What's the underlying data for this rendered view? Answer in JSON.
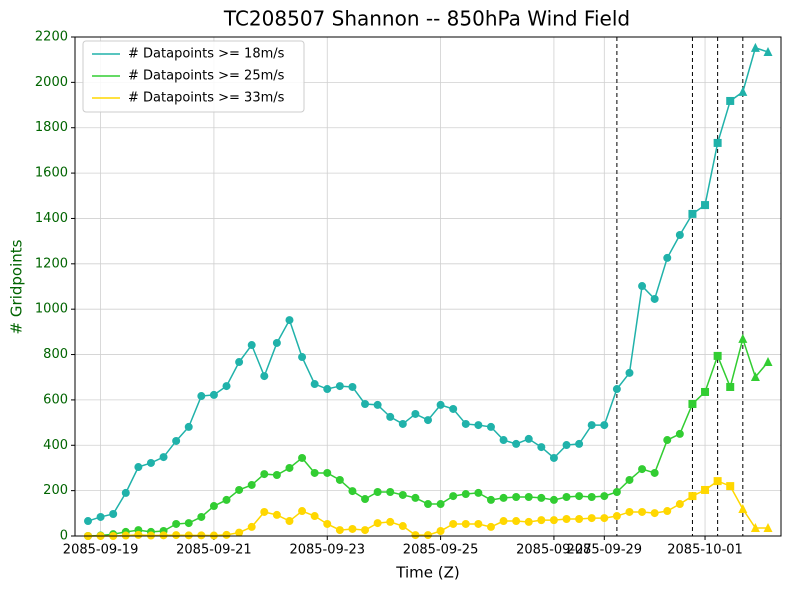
{
  "chart_data": {
    "type": "line",
    "title": "TC208507 Shannon -- 850hPa Wind Field",
    "x_label": "Time (Z)",
    "y_label": "# Gridpoints",
    "categories": [
      null,
      "2085-09-19",
      null,
      null,
      null,
      null,
      null,
      null,
      null,
      null,
      "2085-09-21",
      null,
      null,
      null,
      null,
      null,
      null,
      null,
      null,
      "2085-09-23",
      null,
      null,
      null,
      null,
      null,
      null,
      null,
      null,
      "2085-09-25",
      null,
      null,
      null,
      null,
      null,
      null,
      null,
      null,
      "2085-09-27",
      null,
      null,
      null,
      "2085-09-29",
      null,
      null,
      null,
      null,
      null,
      null,
      null,
      "2085-10-01",
      null,
      null,
      null,
      null,
      null
    ],
    "ylim": [
      0,
      2200
    ],
    "yticks": [
      0,
      200,
      400,
      600,
      800,
      1000,
      1200,
      1400,
      1600,
      1800,
      2000,
      2200
    ],
    "grid": true,
    "legend": "upper left",
    "vlines": [
      42,
      48,
      50,
      52
    ],
    "markers": [
      {
        "start": 0,
        "shape": "circle"
      },
      {
        "start": 48,
        "shape": "square"
      },
      {
        "start": 52,
        "shape": "triangle"
      }
    ],
    "series": [
      {
        "name": "# Datapoints >= 18m/s",
        "color": "#20b2aa",
        "values": [
          66,
          84,
          97,
          190,
          304,
          322,
          348,
          419,
          481,
          617,
          622,
          661,
          767,
          842,
          705,
          851,
          952,
          789,
          670,
          648,
          661,
          657,
          582,
          578,
          525,
          494,
          538,
          511,
          578,
          560,
          494,
          489,
          481,
          423,
          406,
          428,
          392,
          344,
          401,
          406,
          489,
          489,
          648,
          719,
          1102,
          1045,
          1226,
          1327,
          1420,
          1459,
          1733,
          1918,
          1958,
          2152,
          2134
        ]
      },
      {
        "name": "# Datapoints >= 25m/s",
        "color": "#32cd32",
        "values": [
          0,
          2,
          8,
          18,
          26,
          18,
          22,
          53,
          57,
          84,
          132,
          159,
          203,
          225,
          273,
          269,
          300,
          344,
          278,
          278,
          247,
          198,
          163,
          194,
          194,
          181,
          168,
          141,
          141,
          176,
          185,
          190,
          159,
          168,
          172,
          172,
          168,
          159,
          172,
          176,
          172,
          176,
          194,
          247,
          295,
          278,
          423,
          450,
          582,
          635,
          794,
          657,
          869,
          701,
          767
        ]
      },
      {
        "name": "# Datapoints >= 33m/s",
        "color": "#ffd700",
        "values": [
          0,
          0,
          0,
          2,
          5,
          2,
          3,
          4,
          3,
          3,
          2,
          5,
          15,
          40,
          106,
          93,
          66,
          110,
          88,
          53,
          26,
          31,
          26,
          57,
          62,
          44,
          4,
          4,
          22,
          53,
          53,
          53,
          40,
          66,
          66,
          62,
          70,
          70,
          75,
          75,
          79,
          79,
          88,
          106,
          106,
          101,
          110,
          141,
          176,
          203,
          242,
          220,
          119,
          35,
          35
        ]
      }
    ]
  }
}
